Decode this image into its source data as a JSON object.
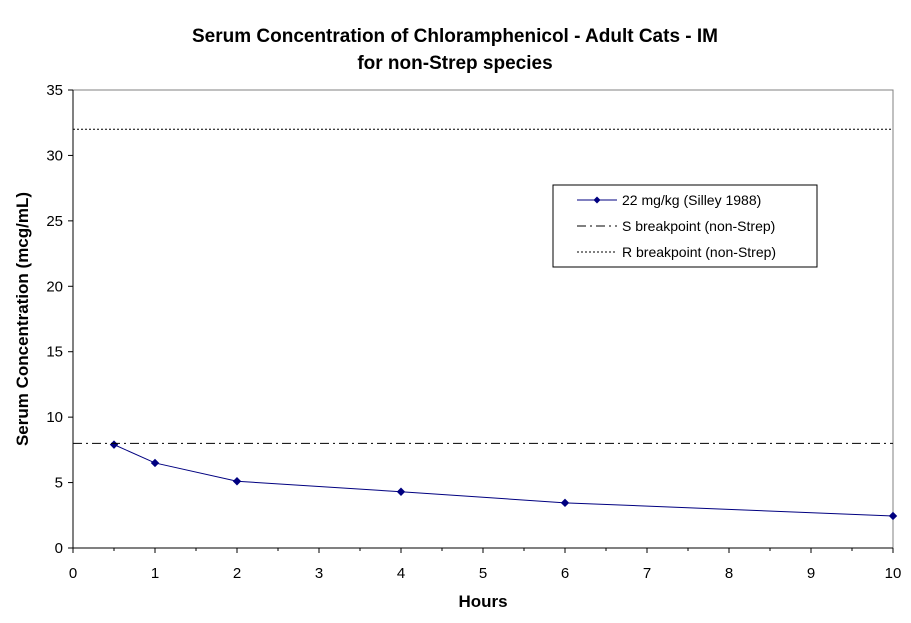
{
  "chart_data": {
    "type": "line",
    "title": "Serum Concentration of Chloramphenicol - Adult Cats - IM",
    "subtitle": "for non-Strep species",
    "xlabel": "Hours",
    "ylabel": "Serum Concentration (mcg/mL)",
    "xlim": [
      0,
      10
    ],
    "ylim": [
      0,
      35
    ],
    "x_ticks": [
      0,
      1,
      2,
      3,
      4,
      5,
      6,
      7,
      8,
      9,
      10
    ],
    "y_ticks": [
      0,
      5,
      10,
      15,
      20,
      25,
      30,
      35
    ],
    "grid": false,
    "legend_position": "right",
    "series": [
      {
        "name": "22 mg/kg (Silley 1988)",
        "color": "#000080",
        "style": "solid-diamond",
        "x": [
          0.5,
          1,
          2,
          4,
          6,
          10
        ],
        "y": [
          7.9,
          6.5,
          5.1,
          4.3,
          3.45,
          2.45
        ]
      },
      {
        "name": "S breakpoint (non-Strep)",
        "color": "#000000",
        "style": "dash-dot",
        "x": [
          0,
          10
        ],
        "y": [
          8,
          8
        ]
      },
      {
        "name": "R breakpoint (non-Strep)",
        "color": "#000000",
        "style": "dotted",
        "x": [
          0,
          10
        ],
        "y": [
          32,
          32
        ]
      }
    ]
  }
}
